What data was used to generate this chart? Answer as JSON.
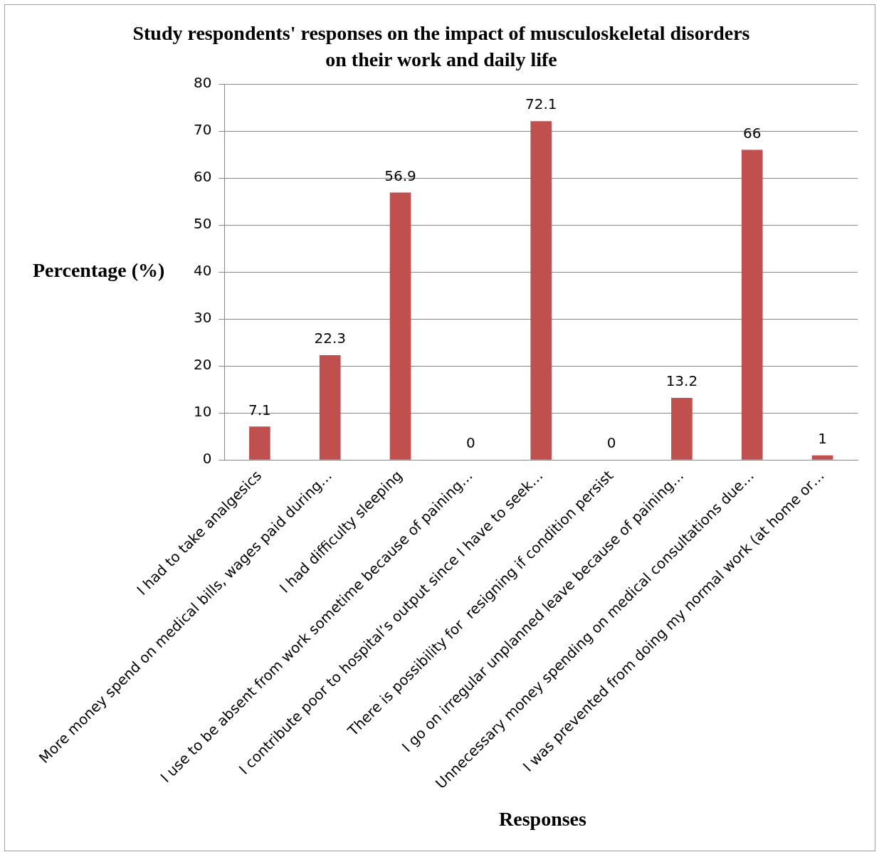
{
  "chart_data": {
    "type": "bar",
    "title": "Study respondents' responses on the impact of musculoskeletal disorders on their work and daily life",
    "xlabel": "Responses",
    "ylabel": "Percentage (%)",
    "categories": [
      "I had to take analgesics",
      "More money spend on medical bills, wages paid during…",
      "I had difficulty sleeping",
      "I use to be absent from work sometime because of paining…",
      "I contribute poor to hospital’s output since I have to seek…",
      "There is possibility for  resigning if condition persist",
      "I go on irregular unplanned leave because of paining…",
      "Unnecessary money spending on medical consultations due…",
      "I was prevented from doing my normal work (at home or…"
    ],
    "values": [
      7.1,
      22.3,
      56.9,
      0,
      72.1,
      0,
      13.2,
      66,
      1
    ],
    "color": "#c0504d",
    "ylim": [
      0,
      80
    ],
    "yticks": [
      0,
      10,
      20,
      30,
      40,
      50,
      60,
      70,
      80
    ],
    "grid": "y",
    "legend": false,
    "data_labels": true
  }
}
